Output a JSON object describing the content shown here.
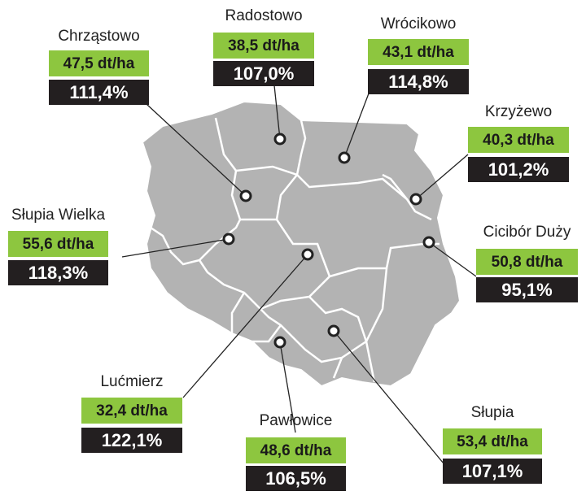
{
  "locations": [
    {
      "name": "Chrząstowo",
      "yield": "47,5 dt/ha",
      "percent": "111,4%"
    },
    {
      "name": "Radostowo",
      "yield": "38,5 dt/ha",
      "percent": "107,0%"
    },
    {
      "name": "Wrócikowo",
      "yield": "43,1 dt/ha",
      "percent": "114,8%"
    },
    {
      "name": "Krzyżewo",
      "yield": "40,3 dt/ha",
      "percent": "101,2%"
    },
    {
      "name": "Słupia Wielka",
      "yield": "55,6 dt/ha",
      "percent": "118,3%"
    },
    {
      "name": "Cicibór Duży",
      "yield": "50,8 dt/ha",
      "percent": "95,1%"
    },
    {
      "name": "Lućmierz",
      "yield": "32,4 dt/ha",
      "percent": "122,1%"
    },
    {
      "name": "Pawłowice",
      "yield": "48,6 dt/ha",
      "percent": "106,5%"
    },
    {
      "name": "Słupia",
      "yield": "53,4 dt/ha",
      "percent": "107,1%"
    }
  ]
}
